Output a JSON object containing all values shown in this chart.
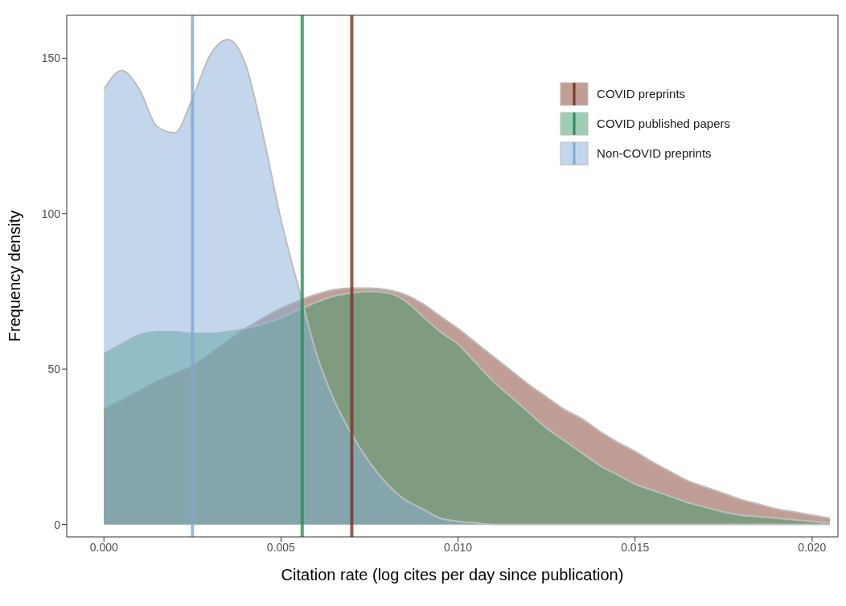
{
  "chart_data": {
    "type": "area",
    "xlabel": "Citation rate (log cites per day since publication)",
    "ylabel": "Frequency density",
    "x": [
      0,
      0.0005,
      0.001,
      0.0015,
      0.002,
      0.0025,
      0.003,
      0.0035,
      0.004,
      0.0045,
      0.005,
      0.0055,
      0.006,
      0.0065,
      0.007,
      0.0075,
      0.008,
      0.0085,
      0.009,
      0.0095,
      0.01,
      0.0105,
      0.011,
      0.0115,
      0.012,
      0.0125,
      0.013,
      0.0135,
      0.014,
      0.0145,
      0.015,
      0.0155,
      0.016,
      0.0165,
      0.017,
      0.0175,
      0.018,
      0.0185,
      0.019,
      0.0195,
      0.02,
      0.0205
    ],
    "series": [
      {
        "name": "COVID preprints",
        "color": "#813d2d",
        "values": [
          37,
          40,
          43,
          46,
          48.5,
          51,
          55,
          59,
          63,
          66.5,
          69.5,
          72,
          74,
          75.5,
          76,
          76,
          75.5,
          74,
          71,
          67,
          63,
          58.5,
          54,
          49.5,
          45,
          41,
          37,
          34,
          30,
          26.5,
          23.5,
          20,
          17,
          14,
          12,
          10,
          8,
          6.5,
          5,
          4,
          3,
          2
        ]
      },
      {
        "name": "COVID published papers",
        "color": "#3f9a6a",
        "values": [
          55,
          58,
          61,
          62,
          62,
          61.5,
          61.5,
          62,
          63,
          64.5,
          66.5,
          69,
          71.5,
          73.5,
          74.5,
          75,
          74.5,
          72,
          67,
          62,
          58,
          52,
          46,
          41,
          36,
          31,
          27,
          23,
          19,
          16,
          13,
          11,
          9,
          7,
          5.5,
          4,
          3,
          2.5,
          2,
          1.5,
          1,
          0.5
        ]
      },
      {
        "name": "Non-COVID preprints",
        "color": "#87add7",
        "values": [
          140,
          146,
          140,
          128,
          126,
          137,
          151,
          156,
          148,
          125,
          98,
          76,
          55,
          40,
          29,
          20,
          13,
          8,
          5,
          2,
          1,
          0.5,
          0,
          0,
          0,
          0,
          0,
          0,
          0,
          0,
          0,
          0,
          0,
          0,
          0,
          0,
          0,
          0,
          0,
          0,
          0,
          0
        ]
      }
    ],
    "ref_lines": [
      {
        "axis": "x",
        "value": 0.007,
        "color": "#7a3326"
      },
      {
        "axis": "x",
        "value": 0.0056,
        "color": "#2e8b57"
      },
      {
        "axis": "x",
        "value": 0.0025,
        "color": "#7fa9d6"
      }
    ],
    "xlim": [
      -0.00105,
      0.02073
    ],
    "xticks": [
      {
        "value": 0,
        "label": "0.000"
      },
      {
        "value": 0.005,
        "label": "0.005"
      },
      {
        "value": 0.01,
        "label": "0.010"
      },
      {
        "value": 0.015,
        "label": "0.015"
      },
      {
        "value": 0.02,
        "label": "0.020"
      }
    ],
    "ylim": [
      -4,
      163.8
    ],
    "yticks": [
      0,
      50,
      100,
      150
    ],
    "legend": "top right"
  }
}
